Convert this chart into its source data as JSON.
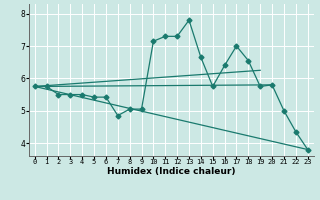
{
  "xlabel": "Humidex (Indice chaleur)",
  "bg_color": "#cce8e4",
  "grid_color": "#ffffff",
  "line_color": "#1a7a6e",
  "xlim": [
    -0.5,
    23.5
  ],
  "ylim": [
    3.6,
    8.3
  ],
  "yticks": [
    4,
    5,
    6,
    7,
    8
  ],
  "xticks": [
    0,
    1,
    2,
    3,
    4,
    5,
    6,
    7,
    8,
    9,
    10,
    11,
    12,
    13,
    14,
    15,
    16,
    17,
    18,
    19,
    20,
    21,
    22,
    23
  ],
  "main_x": [
    0,
    1,
    2,
    3,
    4,
    5,
    6,
    7,
    8,
    9,
    10,
    11,
    12,
    13,
    14,
    15,
    16,
    17,
    18,
    19,
    20,
    21,
    22,
    23
  ],
  "main_y": [
    5.75,
    5.75,
    5.5,
    5.5,
    5.5,
    5.42,
    5.42,
    4.85,
    5.05,
    5.05,
    7.15,
    7.3,
    7.3,
    7.8,
    6.65,
    5.75,
    6.4,
    7.0,
    6.55,
    5.75,
    5.8,
    5.0,
    4.35,
    3.8
  ],
  "ref_lines": [
    {
      "x": [
        0,
        20
      ],
      "y": [
        5.75,
        5.8
      ]
    },
    {
      "x": [
        0,
        19
      ],
      "y": [
        5.75,
        6.25
      ]
    },
    {
      "x": [
        0,
        23
      ],
      "y": [
        5.75,
        3.8
      ]
    }
  ],
  "markersize": 2.5,
  "linewidth": 0.9
}
